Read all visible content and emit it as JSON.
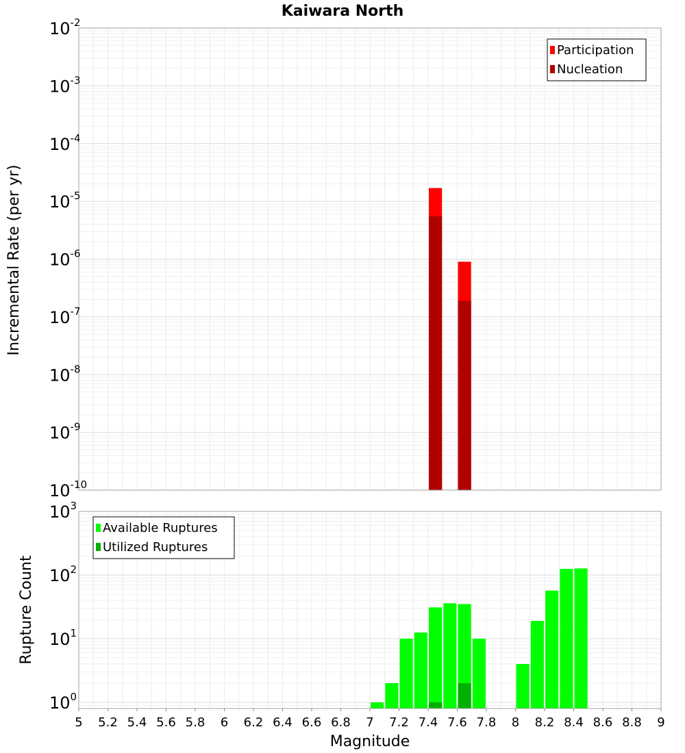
{
  "chart_data": [
    {
      "type": "bar",
      "title": "Kaiwara North",
      "xlabel": "",
      "ylabel": "Incremental Rate (per yr)",
      "yscale": "log",
      "ylim": [
        1e-10,
        0.01
      ],
      "xlim": [
        5,
        9
      ],
      "bar_width": 0.09,
      "grid": true,
      "legend_position": "top-right",
      "y_ticks": [
        {
          "base": "10",
          "exp": "-2",
          "value": 0.01
        },
        {
          "base": "10",
          "exp": "-3",
          "value": 0.001
        },
        {
          "base": "10",
          "exp": "-4",
          "value": 0.0001
        },
        {
          "base": "10",
          "exp": "-5",
          "value": 1e-05
        },
        {
          "base": "10",
          "exp": "-6",
          "value": 1e-06
        },
        {
          "base": "10",
          "exp": "-7",
          "value": 1e-07
        },
        {
          "base": "10",
          "exp": "-8",
          "value": 1e-08
        },
        {
          "base": "10",
          "exp": "-9",
          "value": 1e-09
        },
        {
          "base": "10",
          "exp": "-10",
          "value": 1e-10
        }
      ],
      "series": [
        {
          "name": "Participation",
          "color": "#ff0000",
          "x": [
            7.45,
            7.65
          ],
          "values": [
            1.7e-05,
            9e-07
          ]
        },
        {
          "name": "Nucleation",
          "color": "#b00000",
          "x": [
            7.45,
            7.65
          ],
          "values": [
            5.5e-06,
            1.9e-07
          ]
        }
      ]
    },
    {
      "type": "bar",
      "title": "",
      "xlabel": "Magnitude",
      "ylabel": "Rupture Count",
      "yscale": "log",
      "ylim": [
        0.8,
        1000
      ],
      "xlim": [
        5,
        9
      ],
      "bar_width": 0.09,
      "grid": true,
      "legend_position": "top-left",
      "y_ticks": [
        {
          "base": "10",
          "exp": "3",
          "value": 1000
        },
        {
          "base": "10",
          "exp": "2",
          "value": 100
        },
        {
          "base": "10",
          "exp": "1",
          "value": 10
        },
        {
          "base": "10",
          "exp": "0",
          "value": 1
        }
      ],
      "x_ticks": [
        "5",
        "5.2",
        "5.4",
        "5.6",
        "5.8",
        "6",
        "6.2",
        "6.4",
        "6.6",
        "6.8",
        "7",
        "7.2",
        "7.4",
        "7.6",
        "7.8",
        "8",
        "8.2",
        "8.4",
        "8.6",
        "8.8",
        "9"
      ],
      "series": [
        {
          "name": "Available Ruptures",
          "color": "#00ff00",
          "x": [
            7.05,
            7.15,
            7.25,
            7.35,
            7.45,
            7.55,
            7.65,
            7.75,
            8.05,
            8.15,
            8.25,
            8.35,
            8.45
          ],
          "values": [
            1,
            2,
            10,
            12.5,
            31,
            36,
            35,
            10,
            4,
            19,
            57,
            125,
            127
          ]
        },
        {
          "name": "Utilized Ruptures",
          "color": "#00b000",
          "x": [
            7.45,
            7.65
          ],
          "values": [
            1,
            2
          ]
        }
      ]
    }
  ]
}
